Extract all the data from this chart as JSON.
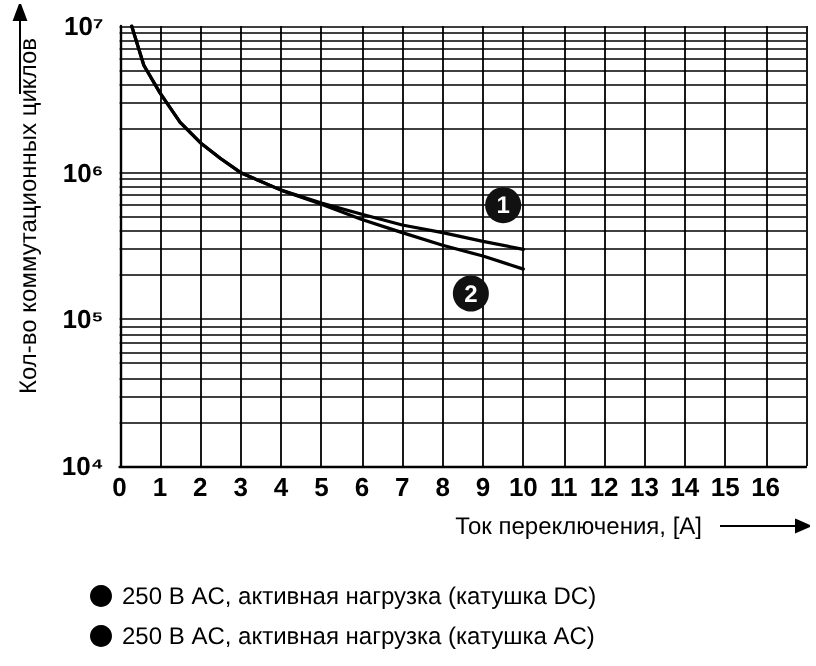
{
  "chart_data": {
    "type": "line",
    "xlabel": "Ток переключения, [А]",
    "ylabel": "Кол-во коммутационных циклов",
    "log": "y",
    "grid": true,
    "legend": "bottom",
    "marker": "none",
    "line_style": "solid",
    "xlim": [
      0,
      17
    ],
    "xticks": [
      0,
      1,
      2,
      3,
      4,
      5,
      6,
      7,
      8,
      9,
      10,
      11,
      12,
      13,
      14,
      15,
      16,
      {
        "value": 17,
        "label": null
      }
    ],
    "ylim": [
      10000,
      10000000
    ],
    "yticks": [
      {
        "value": 10000,
        "label": "10⁴"
      },
      {
        "value": 20000,
        "label": null
      },
      {
        "value": 30000,
        "label": null
      },
      {
        "value": 40000,
        "label": null
      },
      {
        "value": 50000,
        "label": null
      },
      {
        "value": 60000,
        "label": null
      },
      {
        "value": 70000,
        "label": null
      },
      {
        "value": 80000,
        "label": null
      },
      {
        "value": 90000,
        "label": null
      },
      {
        "value": 100000,
        "label": "10⁵"
      },
      {
        "value": 200000,
        "label": null
      },
      {
        "value": 300000,
        "label": null
      },
      {
        "value": 400000,
        "label": null
      },
      {
        "value": 500000,
        "label": null
      },
      {
        "value": 600000,
        "label": null
      },
      {
        "value": 700000,
        "label": null
      },
      {
        "value": 800000,
        "label": null
      },
      {
        "value": 900000,
        "label": null
      },
      {
        "value": 1000000,
        "label": "10⁶"
      },
      {
        "value": 2000000,
        "label": null
      },
      {
        "value": 3000000,
        "label": null
      },
      {
        "value": 4000000,
        "label": null
      },
      {
        "value": 5000000,
        "label": null
      },
      {
        "value": 6000000,
        "label": null
      },
      {
        "value": 7000000,
        "label": null
      },
      {
        "value": 8000000,
        "label": null
      },
      {
        "value": 9000000,
        "label": null
      },
      {
        "value": 10000000,
        "label": "10⁷"
      }
    ],
    "series": [
      {
        "name": "250 В AC, активная нагрузка (катушка DC)",
        "color": "#000000",
        "x": [
          0.3,
          0.6,
          1,
          1.5,
          2,
          2.5,
          3,
          4,
          5,
          6,
          7,
          8,
          9,
          10
        ],
        "values": [
          10000000,
          5400000,
          3500000,
          2200000,
          1600000,
          1250000,
          1000000,
          760000,
          620000,
          520000,
          440000,
          390000,
          340000,
          300000
        ]
      },
      {
        "name": "250 В AC, активная нагрузка (катушка AC)",
        "color": "#000000",
        "x": [
          0.3,
          0.6,
          1,
          1.5,
          2,
          2.5,
          3,
          4,
          5,
          6,
          7,
          8,
          9,
          10
        ],
        "values": [
          10000000,
          5400000,
          3500000,
          2200000,
          1600000,
          1250000,
          1000000,
          760000,
          610000,
          480000,
          390000,
          320000,
          270000,
          220000
        ]
      }
    ],
    "annotations": [
      {
        "text": "1",
        "x": 9.5,
        "y": 600000
      },
      {
        "text": "2",
        "x": 8.7,
        "y": 150000
      }
    ]
  }
}
